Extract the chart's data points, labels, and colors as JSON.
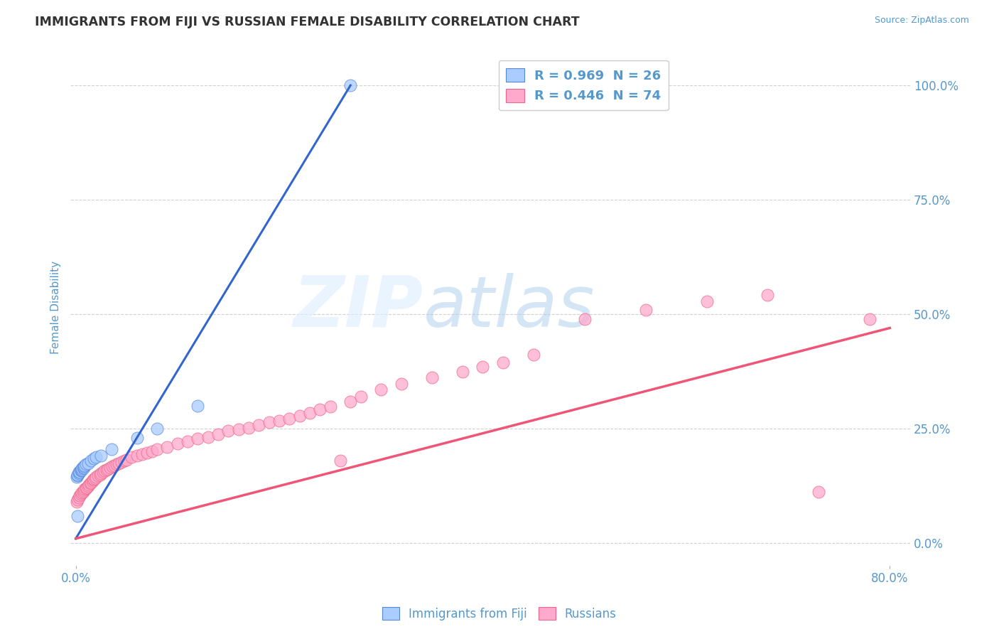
{
  "title": "IMMIGRANTS FROM FIJI VS RUSSIAN FEMALE DISABILITY CORRELATION CHART",
  "source_text": "Source: ZipAtlas.com",
  "ylabel": "Female Disability",
  "xlim": [
    -0.005,
    0.82
  ],
  "ylim": [
    -0.05,
    1.08
  ],
  "xtick_positions": [
    0.0,
    0.8
  ],
  "xtick_labels": [
    "0.0%",
    "80.0%"
  ],
  "ytick_values": [
    0.0,
    0.25,
    0.5,
    0.75,
    1.0
  ],
  "ytick_labels": [
    "0.0%",
    "25.0%",
    "50.0%",
    "75.0%",
    "100.0%"
  ],
  "fiji_scatter_color": "#aaccff",
  "fiji_edge_color": "#5588dd",
  "russian_scatter_color": "#ffaacc",
  "russian_edge_color": "#ee6688",
  "fiji_line_color": "#3366cc",
  "russian_line_color": "#ee5577",
  "background_color": "#ffffff",
  "grid_color": "#cccccc",
  "title_color": "#333333",
  "axis_label_color": "#5599cc",
  "watermark_zip": "ZIP",
  "watermark_atlas": "atlas",
  "fiji_legend_label": "R = 0.969  N = 26",
  "russian_legend_label": "R = 0.446  N = 74",
  "bottom_legend_fiji": "Immigrants from Fiji",
  "bottom_legend_russian": "Russians",
  "fiji_trendline_x": [
    0.0,
    0.27
  ],
  "fiji_trendline_y": [
    0.01,
    1.0
  ],
  "russian_trendline_x": [
    0.0,
    0.8
  ],
  "russian_trendline_y": [
    0.01,
    0.47
  ],
  "fiji_points_x": [
    0.001,
    0.002,
    0.002,
    0.003,
    0.003,
    0.004,
    0.005,
    0.005,
    0.006,
    0.006,
    0.007,
    0.008,
    0.008,
    0.009,
    0.01,
    0.012,
    0.015,
    0.018,
    0.02,
    0.025,
    0.035,
    0.06,
    0.08,
    0.12,
    0.002,
    0.27
  ],
  "fiji_points_y": [
    0.145,
    0.148,
    0.15,
    0.152,
    0.155,
    0.155,
    0.158,
    0.16,
    0.16,
    0.163,
    0.165,
    0.165,
    0.168,
    0.17,
    0.172,
    0.175,
    0.18,
    0.185,
    0.188,
    0.192,
    0.205,
    0.23,
    0.25,
    0.3,
    0.06,
    1.0
  ],
  "russian_points_x": [
    0.001,
    0.002,
    0.003,
    0.004,
    0.005,
    0.006,
    0.007,
    0.008,
    0.009,
    0.01,
    0.011,
    0.012,
    0.013,
    0.014,
    0.015,
    0.016,
    0.017,
    0.018,
    0.019,
    0.02,
    0.022,
    0.024,
    0.025,
    0.027,
    0.028,
    0.03,
    0.032,
    0.034,
    0.036,
    0.038,
    0.04,
    0.042,
    0.045,
    0.048,
    0.05,
    0.055,
    0.06,
    0.065,
    0.07,
    0.075,
    0.08,
    0.09,
    0.1,
    0.11,
    0.12,
    0.13,
    0.14,
    0.15,
    0.16,
    0.17,
    0.18,
    0.19,
    0.2,
    0.21,
    0.22,
    0.23,
    0.24,
    0.25,
    0.26,
    0.27,
    0.28,
    0.3,
    0.32,
    0.35,
    0.38,
    0.4,
    0.42,
    0.45,
    0.5,
    0.56,
    0.62,
    0.68,
    0.73,
    0.78
  ],
  "russian_points_y": [
    0.09,
    0.095,
    0.1,
    0.105,
    0.108,
    0.11,
    0.112,
    0.115,
    0.118,
    0.12,
    0.122,
    0.125,
    0.128,
    0.13,
    0.132,
    0.135,
    0.138,
    0.14,
    0.142,
    0.145,
    0.148,
    0.15,
    0.152,
    0.155,
    0.158,
    0.16,
    0.162,
    0.165,
    0.168,
    0.17,
    0.172,
    0.175,
    0.178,
    0.18,
    0.182,
    0.188,
    0.192,
    0.195,
    0.198,
    0.2,
    0.205,
    0.21,
    0.218,
    0.222,
    0.228,
    0.232,
    0.238,
    0.245,
    0.248,
    0.252,
    0.258,
    0.265,
    0.268,
    0.272,
    0.278,
    0.285,
    0.292,
    0.298,
    0.18,
    0.31,
    0.32,
    0.335,
    0.348,
    0.362,
    0.375,
    0.385,
    0.395,
    0.412,
    0.49,
    0.51,
    0.528,
    0.542,
    0.112,
    0.49
  ]
}
